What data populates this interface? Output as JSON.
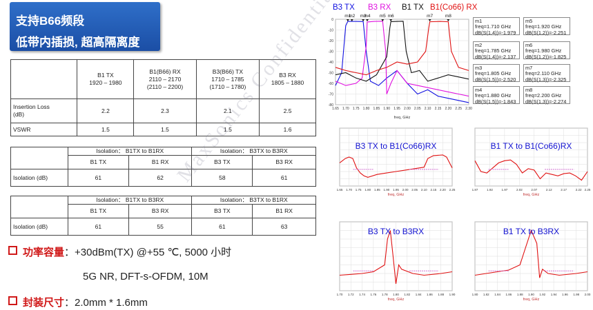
{
  "title": {
    "line1": "支持B66频段",
    "line2": "低带内插损, 超高隔离度"
  },
  "table1": {
    "headers": [
      "",
      "B1 TX\n1920 – 1980",
      "B1(B66) RX\n2110 – 2170\n(2110 – 2200)",
      "B3(B66) TX\n1710 – 1785\n(1710 – 1780)",
      "B3 RX\n1805 – 1880"
    ],
    "rows": [
      [
        "Insertion Loss\n(dB)",
        "2.2",
        "2.3",
        "2.1",
        "2.5"
      ],
      [
        "VSWR",
        "1.5",
        "1.5",
        "1.5",
        "1.6"
      ]
    ]
  },
  "table2": {
    "groups": [
      "Isolation： B1TX to B1RX",
      "Isolation： B3TX to B3RX"
    ],
    "cols": [
      "B1 TX",
      "B1 RX",
      "B3 TX",
      "B3 RX"
    ],
    "label": "Isolation (dB)",
    "values": [
      "61",
      "62",
      "58",
      "61"
    ]
  },
  "table3": {
    "groups": [
      "Isolation： B1TX to B3RX",
      "Isolation： B3TX to B1RX"
    ],
    "cols": [
      "B1 TX",
      "B3 RX",
      "B3 TX",
      "B1 RX"
    ],
    "label": "Isolation (dB)",
    "values": [
      "61",
      "55",
      "61",
      "63"
    ]
  },
  "bullets": {
    "power_key": "功率容量",
    "power_val": "：+30dBm(TX) @+55 ℃,  5000 小时",
    "power_sub": "5G NR, DFT-s-OFDM, 10M",
    "pkg_key": "封装尺寸",
    "pkg_val": "：2.0mm * 1.6mm"
  },
  "watermark": "MaxSonics Confidential",
  "colors": {
    "accent": "#1b4ea5",
    "bullet": "#d01818",
    "trace_red": "#e01010",
    "trace_blue": "#1010e0",
    "trace_magenta": "#e010e0",
    "trace_black": "#111111",
    "marker_pink": "#d070d0"
  },
  "chart_data": [
    {
      "type": "line",
      "title": "",
      "legend": [
        "B3 TX",
        "B3 RX",
        "B1 TX",
        "B1(Co66) RX"
      ],
      "xlabel": "freq, GHz",
      "xticks": [
        "1.65",
        "1.70",
        "1.75",
        "1.80",
        "1.85",
        "1.90",
        "1.95",
        "2.00",
        "2.05",
        "2.10",
        "2.15",
        "2.20",
        "2.25",
        "2.30"
      ],
      "yticks": [
        "0",
        "-10",
        "-20",
        "-30",
        "-40",
        "-50",
        "-60",
        "-70",
        "-80"
      ],
      "xlim": [
        1.65,
        2.3
      ],
      "ylim": [
        -80,
        0
      ],
      "markers": [
        {
          "name": "m1",
          "text": "m1\nfreq=1.710 GHz\ndB(S(1,4))=-1.979"
        },
        {
          "name": "m2",
          "text": "m2\nfreq=1.785 GHz\ndB(S(1,4))=-2.137"
        },
        {
          "name": "m3",
          "text": "m3\nfreq=1.805 GHz\ndB(S(1,5))=-2.520"
        },
        {
          "name": "m4",
          "text": "m4\nfreq=1.880 GHz\ndB(S(1,5))=-1.843"
        },
        {
          "name": "m5",
          "text": "m5\nfreq=1.920 GHz\ndB(S(1,2))=-2.251"
        },
        {
          "name": "m6",
          "text": "m6\nfreq=1.980 GHz\ndB(S(1,2))=-1.825"
        },
        {
          "name": "m7",
          "text": "m7\nfreq=2.110 GHz\ndB(S(1,3))=-2.325"
        },
        {
          "name": "m8",
          "text": "m8\nfreq=2.200 GHz\ndB(S(1,3))=-2.274"
        }
      ],
      "marker_labels": [
        "m1",
        "m2",
        "m3",
        "m4",
        "m5",
        "m6",
        "m7",
        "m8"
      ],
      "series": [
        {
          "name": "B3 TX",
          "color": "#1010e0",
          "x": [
            1.65,
            1.68,
            1.7,
            1.71,
            1.75,
            1.785,
            1.8,
            1.82,
            1.86,
            1.9,
            1.95,
            2.0,
            2.05,
            2.1,
            2.15,
            2.2,
            2.25,
            2.3
          ],
          "y": [
            -62,
            -50,
            -6,
            -2,
            -2,
            -2.1,
            -30,
            -58,
            -62,
            -55,
            -48,
            -60,
            -70,
            -66,
            -72,
            -74,
            -76,
            -78
          ]
        },
        {
          "name": "B3 RX",
          "color": "#e010e0",
          "x": [
            1.65,
            1.7,
            1.75,
            1.78,
            1.8,
            1.805,
            1.84,
            1.88,
            1.895,
            1.9,
            1.92,
            1.95,
            2.0,
            2.05,
            2.1,
            2.15,
            2.2,
            2.25,
            2.3
          ],
          "y": [
            -58,
            -62,
            -60,
            -55,
            -25,
            -2.5,
            -2,
            -1.8,
            -30,
            -70,
            -60,
            -48,
            -60,
            -62,
            -64,
            -66,
            -68,
            -70,
            -72
          ]
        },
        {
          "name": "B1 TX",
          "color": "#111111",
          "x": [
            1.65,
            1.7,
            1.75,
            1.8,
            1.85,
            1.9,
            1.915,
            1.92,
            1.95,
            1.98,
            1.995,
            2.02,
            2.06,
            2.1,
            2.15,
            2.2,
            2.25,
            2.3
          ],
          "y": [
            -52,
            -50,
            -55,
            -58,
            -52,
            -35,
            -8,
            -2.2,
            -2,
            -1.8,
            -30,
            -50,
            -48,
            -58,
            -55,
            -52,
            -54,
            -56
          ]
        },
        {
          "name": "B1(Co66) RX",
          "color": "#e01010",
          "x": [
            1.65,
            1.7,
            1.75,
            1.8,
            1.85,
            1.9,
            1.95,
            2.0,
            2.05,
            2.09,
            2.105,
            2.11,
            2.16,
            2.2,
            2.215,
            2.25,
            2.3
          ],
          "y": [
            -45,
            -48,
            -50,
            -52,
            -48,
            -45,
            -40,
            -42,
            -40,
            -30,
            -8,
            -2.3,
            -2,
            -2.3,
            -30,
            -45,
            -48
          ]
        }
      ]
    },
    {
      "type": "line",
      "title": "B3 TX to B1(Co66)RX",
      "xlabel": "freq, GHz",
      "xticks": [
        "1.65",
        "1.70",
        "1.75",
        "1.80",
        "1.85",
        "1.90",
        "1.95",
        "2.00",
        "2.05",
        "2.10",
        "2.15",
        "2.20",
        "2.25"
      ],
      "xlim": [
        1.65,
        2.25
      ],
      "ylim": [
        -80,
        0
      ],
      "series": [
        {
          "name": "isolation",
          "color": "#e01010",
          "x": [
            1.65,
            1.68,
            1.7,
            1.72,
            1.74,
            1.76,
            1.78,
            1.8,
            1.85,
            1.9,
            1.95,
            2.0,
            2.05,
            2.1,
            2.12,
            2.15,
            2.2,
            2.22,
            2.25
          ],
          "y": [
            -48,
            -42,
            -40,
            -42,
            -55,
            -62,
            -66,
            -68,
            -64,
            -62,
            -60,
            -58,
            -56,
            -54,
            -42,
            -38,
            -37,
            -40,
            -55
          ]
        }
      ]
    },
    {
      "type": "line",
      "title": "B1 TX to B1(Co66)RX",
      "xlabel": "freq, GHz",
      "xticks": [
        "1.87",
        "1.92",
        "1.97",
        "2.02",
        "2.07",
        "2.12",
        "2.17",
        "2.22",
        "2.25"
      ],
      "xlim": [
        1.87,
        2.25
      ],
      "ylim": [
        -80,
        0
      ],
      "series": [
        {
          "name": "isolation",
          "color": "#e01010",
          "x": [
            1.87,
            1.89,
            1.91,
            1.93,
            1.95,
            1.97,
            1.99,
            2.01,
            2.03,
            2.05,
            2.07,
            2.09,
            2.11,
            2.13,
            2.15,
            2.17,
            2.19,
            2.21,
            2.23,
            2.25
          ],
          "y": [
            -45,
            -60,
            -62,
            -55,
            -48,
            -45,
            -44,
            -50,
            -62,
            -56,
            -58,
            -70,
            -62,
            -64,
            -66,
            -63,
            -62,
            -66,
            -72,
            -60
          ]
        }
      ]
    },
    {
      "type": "line",
      "title": "B3 TX to B3RX",
      "xlabel": "freq, GHz",
      "xticks": [
        "1.70",
        "1.72",
        "1.74",
        "1.76",
        "1.78",
        "1.80",
        "1.82",
        "1.84",
        "1.86",
        "1.88",
        "1.90"
      ],
      "xlim": [
        1.7,
        1.9
      ],
      "ylim": [
        -80,
        0
      ],
      "series": [
        {
          "name": "isolation",
          "color": "#e01010",
          "x": [
            1.7,
            1.72,
            1.74,
            1.76,
            1.78,
            1.785,
            1.79,
            1.795,
            1.8,
            1.805,
            1.81,
            1.83,
            1.85,
            1.88,
            1.9
          ],
          "y": [
            -62,
            -61,
            -60,
            -58,
            -50,
            -20,
            -10,
            -40,
            -72,
            -50,
            -55,
            -60,
            -62,
            -60,
            -58
          ]
        }
      ]
    },
    {
      "type": "line",
      "title": "B1 TX to B3RX",
      "xlabel": "freq, GHz",
      "xticks": [
        "1.80",
        "1.82",
        "1.84",
        "1.86",
        "1.88",
        "1.90",
        "1.92",
        "1.94",
        "1.96",
        "1.98",
        "2.00"
      ],
      "xlim": [
        1.8,
        2.0
      ],
      "ylim": [
        -80,
        0
      ],
      "series": [
        {
          "name": "isolation",
          "color": "#e01010",
          "x": [
            1.8,
            1.82,
            1.84,
            1.86,
            1.88,
            1.89,
            1.9,
            1.91,
            1.915,
            1.92,
            1.93,
            1.95,
            1.98,
            2.0
          ],
          "y": [
            -62,
            -60,
            -58,
            -56,
            -50,
            -30,
            -10,
            -25,
            -65,
            -55,
            -60,
            -62,
            -60,
            -58
          ]
        }
      ]
    }
  ]
}
